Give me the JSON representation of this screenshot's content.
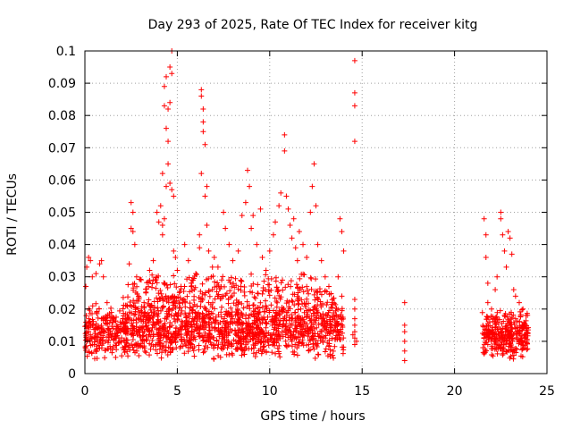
{
  "chart_data": {
    "type": "scatter",
    "title": "Day 293 of 2025, Rate Of TEC Index for receiver kitg",
    "xlabel": "GPS time / hours",
    "ylabel": "ROTI / TECUs",
    "xlim": [
      0,
      25
    ],
    "ylim": [
      0,
      0.1
    ],
    "xticks": [
      0,
      5,
      10,
      15,
      20,
      25
    ],
    "xtick_labels": [
      "0",
      "5",
      "10",
      "15",
      "20",
      "25"
    ],
    "yticks": [
      0,
      0.01,
      0.02,
      0.03,
      0.04,
      0.05,
      0.06,
      0.07,
      0.08,
      0.09,
      0.1
    ],
    "ytick_labels": [
      "0",
      "0.01",
      "0.02",
      "0.03",
      "0.04",
      "0.05",
      "0.06",
      "0.07",
      "0.08",
      "0.09",
      "0.1"
    ],
    "grid": true,
    "marker": "+",
    "series": [
      {
        "name": "ROTI",
        "color": "#ff0000",
        "points": [
          [
            0.05,
            0.027
          ],
          [
            0.1,
            0.033
          ],
          [
            0.2,
            0.036
          ],
          [
            0.3,
            0.035
          ],
          [
            0.4,
            0.03
          ],
          [
            0.6,
            0.031
          ],
          [
            0.8,
            0.034
          ],
          [
            0.9,
            0.035
          ],
          [
            1.0,
            0.03
          ],
          [
            1.2,
            0.022
          ],
          [
            0.1,
            0.015
          ],
          [
            0.3,
            0.012
          ],
          [
            0.5,
            0.009
          ],
          [
            0.7,
            0.014
          ],
          [
            0.9,
            0.017
          ],
          [
            1.1,
            0.01
          ],
          [
            1.3,
            0.012
          ],
          [
            1.5,
            0.016
          ],
          [
            1.7,
            0.011
          ],
          [
            1.9,
            0.014
          ],
          [
            2.1,
            0.013
          ],
          [
            2.3,
            0.018
          ],
          [
            2.5,
            0.053
          ],
          [
            2.5,
            0.045
          ],
          [
            2.6,
            0.05
          ],
          [
            2.6,
            0.044
          ],
          [
            2.7,
            0.04
          ],
          [
            2.8,
            0.03
          ],
          [
            2.9,
            0.024
          ],
          [
            2.4,
            0.034
          ],
          [
            3.0,
            0.018
          ],
          [
            3.2,
            0.022
          ],
          [
            3.3,
            0.025
          ],
          [
            3.5,
            0.032
          ],
          [
            3.7,
            0.035
          ],
          [
            3.8,
            0.029
          ],
          [
            3.9,
            0.05
          ],
          [
            4.0,
            0.047
          ],
          [
            4.1,
            0.052
          ],
          [
            4.2,
            0.046
          ],
          [
            4.2,
            0.062
          ],
          [
            4.3,
            0.083
          ],
          [
            4.3,
            0.089
          ],
          [
            4.4,
            0.092
          ],
          [
            4.4,
            0.076
          ],
          [
            4.5,
            0.072
          ],
          [
            4.5,
            0.082
          ],
          [
            4.6,
            0.084
          ],
          [
            4.6,
            0.095
          ],
          [
            4.7,
            0.1
          ],
          [
            4.7,
            0.093
          ],
          [
            4.5,
            0.065
          ],
          [
            4.4,
            0.058
          ],
          [
            4.6,
            0.059
          ],
          [
            4.7,
            0.057
          ],
          [
            4.8,
            0.055
          ],
          [
            4.3,
            0.048
          ],
          [
            4.2,
            0.043
          ],
          [
            4.8,
            0.038
          ],
          [
            4.9,
            0.036
          ],
          [
            5.0,
            0.032
          ],
          [
            5.2,
            0.027
          ],
          [
            5.4,
            0.04
          ],
          [
            5.6,
            0.035
          ],
          [
            5.8,
            0.029
          ],
          [
            6.0,
            0.031
          ],
          [
            6.2,
            0.039
          ],
          [
            6.3,
            0.088
          ],
          [
            6.3,
            0.086
          ],
          [
            6.4,
            0.082
          ],
          [
            6.4,
            0.078
          ],
          [
            6.4,
            0.075
          ],
          [
            6.5,
            0.071
          ],
          [
            6.3,
            0.062
          ],
          [
            6.6,
            0.058
          ],
          [
            6.5,
            0.055
          ],
          [
            6.2,
            0.043
          ],
          [
            6.6,
            0.046
          ],
          [
            6.7,
            0.038
          ],
          [
            6.9,
            0.033
          ],
          [
            7.0,
            0.036
          ],
          [
            7.2,
            0.033
          ],
          [
            7.4,
            0.029
          ],
          [
            7.5,
            0.05
          ],
          [
            7.6,
            0.045
          ],
          [
            7.8,
            0.04
          ],
          [
            8.0,
            0.035
          ],
          [
            8.3,
            0.038
          ],
          [
            8.5,
            0.049
          ],
          [
            8.7,
            0.053
          ],
          [
            8.8,
            0.063
          ],
          [
            8.9,
            0.058
          ],
          [
            9.0,
            0.045
          ],
          [
            9.1,
            0.049
          ],
          [
            9.3,
            0.04
          ],
          [
            9.5,
            0.051
          ],
          [
            9.6,
            0.036
          ],
          [
            9.8,
            0.032
          ],
          [
            10.0,
            0.038
          ],
          [
            10.2,
            0.043
          ],
          [
            10.3,
            0.047
          ],
          [
            10.5,
            0.052
          ],
          [
            10.6,
            0.056
          ],
          [
            10.8,
            0.074
          ],
          [
            10.8,
            0.069
          ],
          [
            10.9,
            0.055
          ],
          [
            11.0,
            0.051
          ],
          [
            11.1,
            0.046
          ],
          [
            11.2,
            0.042
          ],
          [
            11.3,
            0.048
          ],
          [
            11.4,
            0.039
          ],
          [
            11.5,
            0.035
          ],
          [
            11.6,
            0.044
          ],
          [
            11.8,
            0.04
          ],
          [
            12.0,
            0.036
          ],
          [
            12.2,
            0.05
          ],
          [
            12.3,
            0.058
          ],
          [
            12.4,
            0.065
          ],
          [
            12.5,
            0.052
          ],
          [
            12.6,
            0.04
          ],
          [
            12.8,
            0.035
          ],
          [
            13.0,
            0.03
          ],
          [
            13.2,
            0.027
          ],
          [
            13.4,
            0.022
          ],
          [
            13.6,
            0.018
          ],
          [
            13.8,
            0.048
          ],
          [
            13.9,
            0.044
          ],
          [
            14.0,
            0.038
          ],
          [
            13.7,
            0.03
          ],
          [
            13.9,
            0.024
          ],
          [
            14.6,
            0.097
          ],
          [
            14.6,
            0.087
          ],
          [
            14.6,
            0.083
          ],
          [
            14.6,
            0.072
          ],
          [
            14.6,
            0.023
          ],
          [
            14.6,
            0.02
          ],
          [
            14.6,
            0.017
          ],
          [
            14.6,
            0.015
          ],
          [
            14.6,
            0.013
          ],
          [
            14.6,
            0.011
          ],
          [
            14.6,
            0.009
          ],
          [
            14.5,
            0.012
          ],
          [
            14.7,
            0.01
          ],
          [
            17.3,
            0.022
          ],
          [
            17.3,
            0.015
          ],
          [
            17.3,
            0.013
          ],
          [
            17.3,
            0.01
          ],
          [
            17.3,
            0.007
          ],
          [
            17.3,
            0.004
          ],
          [
            21.6,
            0.048
          ],
          [
            21.7,
            0.043
          ],
          [
            21.7,
            0.036
          ],
          [
            21.8,
            0.028
          ],
          [
            21.8,
            0.022
          ],
          [
            22.0,
            0.02
          ],
          [
            22.2,
            0.026
          ],
          [
            22.3,
            0.03
          ],
          [
            22.5,
            0.05
          ],
          [
            22.5,
            0.048
          ],
          [
            22.6,
            0.043
          ],
          [
            22.7,
            0.038
          ],
          [
            22.8,
            0.033
          ],
          [
            22.9,
            0.044
          ],
          [
            23.0,
            0.042
          ],
          [
            23.1,
            0.037
          ],
          [
            23.2,
            0.026
          ],
          [
            23.3,
            0.024
          ],
          [
            23.5,
            0.022
          ],
          [
            23.7,
            0.02
          ],
          [
            21.6,
            0.012
          ],
          [
            21.8,
            0.009
          ],
          [
            22.0,
            0.013
          ],
          [
            22.2,
            0.008
          ],
          [
            22.4,
            0.011
          ],
          [
            22.6,
            0.014
          ],
          [
            22.8,
            0.01
          ],
          [
            23.0,
            0.012
          ],
          [
            23.2,
            0.007
          ],
          [
            23.4,
            0.013
          ],
          [
            23.6,
            0.009
          ],
          [
            23.8,
            0.011
          ],
          [
            23.9,
            0.014
          ],
          [
            21.9,
            0.016
          ],
          [
            22.1,
            0.017
          ],
          [
            22.7,
            0.018
          ],
          [
            23.3,
            0.017
          ],
          [
            23.7,
            0.015
          ]
        ],
        "dense_bands": [
          {
            "x": [
              0.0,
              14.0
            ],
            "y": [
              0.004,
              0.022
            ],
            "count": 1400
          },
          {
            "x": [
              2.0,
              13.5
            ],
            "y": [
              0.015,
              0.032
            ],
            "count": 420
          },
          {
            "x": [
              21.5,
              24.0
            ],
            "y": [
              0.004,
              0.02
            ],
            "count": 320
          }
        ]
      }
    ]
  }
}
